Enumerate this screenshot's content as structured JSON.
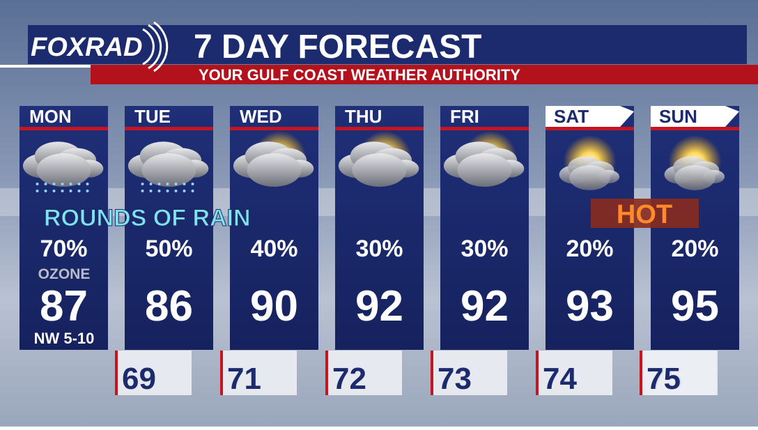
{
  "header": {
    "logo": "FOXRAD",
    "title": "7 DAY FORECAST",
    "subtitle": "YOUR GULF COAST WEATHER AUTHORITY"
  },
  "days": [
    {
      "name": "MON",
      "rain": "70%",
      "high": 87,
      "low": 69
    },
    {
      "name": "TUE",
      "rain": "50%",
      "high": 86,
      "low": 71
    },
    {
      "name": "WED",
      "rain": "40%",
      "high": 90,
      "low": 72
    },
    {
      "name": "THU",
      "rain": "30%",
      "high": 92,
      "low": 73
    },
    {
      "name": "FRI",
      "rain": "30%",
      "high": 92,
      "low": 74
    },
    {
      "name": "SAT",
      "rain": "20%",
      "high": 93,
      "low": 75
    },
    {
      "name": "SUN",
      "rain": "20%",
      "high": 95,
      "low": 75
    }
  ],
  "notes": {
    "rain": "ROUNDS OF RAIN",
    "hot": "HOT",
    "ozone": "OZONE",
    "wind": "NW 5-10"
  }
}
